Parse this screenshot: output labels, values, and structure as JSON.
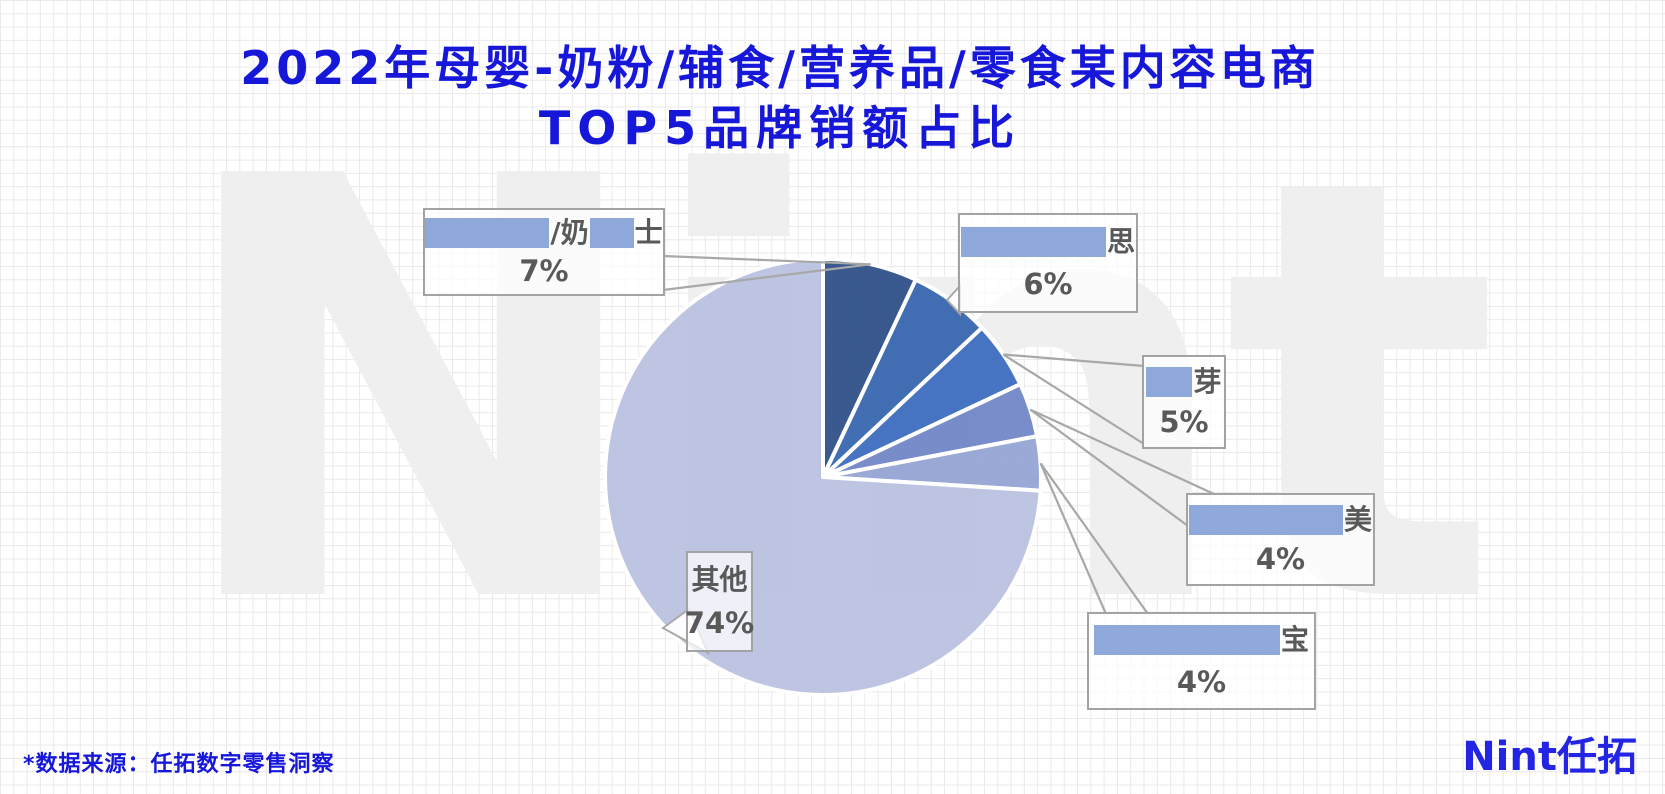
{
  "title": {
    "line1": "2022年母婴-奶粉/辅食/营养品/零食某内容电商",
    "line2": "TOP5品牌销额占比",
    "color": "#1717D9"
  },
  "watermark": {
    "text": "Nint",
    "color": "#EFEFEF"
  },
  "chart_data": {
    "type": "pie",
    "title": "2022年母婴-奶粉/辅食/营养品/零食某内容电商TOP5品牌销额占比",
    "unit": "%",
    "start_angle_deg": 0,
    "direction": "clockwise",
    "legend": "none",
    "mask_color": "#8EA8DB",
    "callout_text_color": "#595959",
    "slices": [
      {
        "rank": 1,
        "value": 7,
        "percent_label": "7%",
        "label_masked": true,
        "label_visible_fragments": [
          "/奶",
          "士"
        ],
        "color": "#2B4C87"
      },
      {
        "rank": 2,
        "value": 6,
        "percent_label": "6%",
        "label_masked": true,
        "label_visible_fragments": [
          "思"
        ],
        "color": "#3463AD"
      },
      {
        "rank": 3,
        "value": 5,
        "percent_label": "5%",
        "label_masked": true,
        "label_visible_fragments": [
          "芽"
        ],
        "color": "#3A6BBE"
      },
      {
        "rank": 4,
        "value": 4,
        "percent_label": "4%",
        "label_masked": true,
        "label_visible_fragments": [
          "美"
        ],
        "color": "#6E84C6"
      },
      {
        "rank": 5,
        "value": 4,
        "percent_label": "4%",
        "label_masked": true,
        "label_visible_fragments": [
          "宝"
        ],
        "color": "#93A2D3"
      },
      {
        "rank": 6,
        "value": 74,
        "percent_label": "74%",
        "label_masked": false,
        "label_visible_fragments": [
          "其他"
        ],
        "color": "#B9C1E0"
      }
    ]
  },
  "footer": {
    "source_note": "*数据来源：任拓数字零售洞察"
  },
  "logo": {
    "text": "Nint任拓"
  }
}
